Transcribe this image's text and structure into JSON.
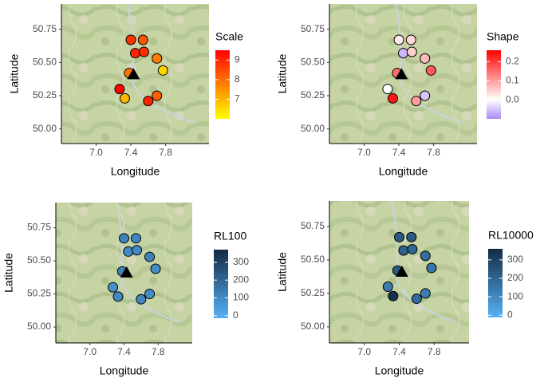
{
  "chart_data": [
    {
      "type": "scatter",
      "x_label": "Longitude",
      "y_label": "Latitude",
      "legend_title": "Scale",
      "xlim": [
        6.6,
        8.3
      ],
      "ylim": [
        49.89,
        50.94
      ],
      "xticks": [
        {
          "value": 7,
          "label": "7.0"
        },
        {
          "value": 7.4,
          "label": "7.4"
        },
        {
          "value": 7.8,
          "label": "7.8"
        }
      ],
      "yticks": [
        {
          "value": 50,
          "label": "50.00"
        },
        {
          "value": 50.25,
          "label": "50.25"
        },
        {
          "value": 50.5,
          "label": "50.50"
        },
        {
          "value": 50.75,
          "label": "50.75"
        }
      ],
      "x": [
        7.4,
        7.54,
        7.45,
        7.55,
        7.7,
        7.77,
        7.38,
        7.27,
        7.33,
        7.6,
        7.7
      ],
      "y": [
        50.67,
        50.67,
        50.57,
        50.58,
        50.53,
        50.44,
        50.42,
        50.3,
        50.23,
        50.21,
        50.25
      ],
      "values": [
        8.8,
        8.3,
        9.0,
        8.9,
        7.8,
        6.6,
        7.9,
        9.5,
        7.0,
        9.0,
        8.2
      ],
      "color_scale": {
        "low": "#ffff00",
        "high": "#ff0000",
        "lim": [
          6.0,
          9.5
        ],
        "ticks": [
          7,
          8,
          9
        ]
      },
      "marker": {
        "x": 7.43,
        "y": 50.41
      }
    },
    {
      "type": "scatter",
      "x_label": "Longitude",
      "y_label": "Latitude",
      "legend_title": "Shape",
      "xlim": [
        6.6,
        8.3
      ],
      "ylim": [
        49.89,
        50.94
      ],
      "xticks": [
        {
          "value": 7,
          "label": "7.0"
        },
        {
          "value": 7.4,
          "label": "7.4"
        },
        {
          "value": 7.8,
          "label": "7.8"
        }
      ],
      "yticks": [
        {
          "value": 50,
          "label": "50.00"
        },
        {
          "value": 50.25,
          "label": "50.25"
        },
        {
          "value": 50.5,
          "label": "50.50"
        },
        {
          "value": 50.75,
          "label": "50.75"
        }
      ],
      "x": [
        7.4,
        7.54,
        7.45,
        7.55,
        7.7,
        7.77,
        7.38,
        7.27,
        7.33,
        7.6,
        7.7
      ],
      "y": [
        50.67,
        50.67,
        50.57,
        50.58,
        50.53,
        50.44,
        50.42,
        50.3,
        50.23,
        50.21,
        50.25
      ],
      "values": [
        0.02,
        0.04,
        -0.06,
        0.05,
        0.07,
        0.17,
        0.15,
        0.0,
        0.24,
        0.1,
        -0.05
      ],
      "color_scale": {
        "low": "#a98bf5",
        "mid": "#ffffff",
        "high": "#ff0000",
        "midpoint": 0,
        "lim": [
          -0.1,
          0.26
        ],
        "ticks": [
          {
            "value": 0,
            "label": "0.0"
          },
          0.1,
          0.2
        ]
      },
      "marker": {
        "x": 7.43,
        "y": 50.41
      }
    },
    {
      "type": "scatter",
      "x_label": "Longitude",
      "y_label": "Latitude",
      "legend_title": "RL100",
      "xlim": [
        6.6,
        8.2
      ],
      "ylim": [
        49.88,
        50.94
      ],
      "xticks": [
        {
          "value": 7,
          "label": "7.0"
        },
        {
          "value": 7.4,
          "label": "7.4"
        },
        {
          "value": 7.8,
          "label": "7.8"
        }
      ],
      "yticks": [
        {
          "value": 50,
          "label": "50.00"
        },
        {
          "value": 50.25,
          "label": "50.25"
        },
        {
          "value": 50.5,
          "label": "50.50"
        },
        {
          "value": 50.75,
          "label": "50.75"
        }
      ],
      "x": [
        7.4,
        7.54,
        7.45,
        7.55,
        7.7,
        7.77,
        7.38,
        7.27,
        7.33,
        7.6,
        7.7
      ],
      "y": [
        50.67,
        50.67,
        50.57,
        50.58,
        50.53,
        50.44,
        50.42,
        50.3,
        50.23,
        50.21,
        50.25
      ],
      "values": [
        120,
        110,
        100,
        100,
        120,
        90,
        120,
        80,
        100,
        110,
        90
      ],
      "color_scale": {
        "low": "#56b1f7",
        "high": "#132b43",
        "lim": [
          -15,
          372
        ],
        "ticks": [
          0,
          100,
          200,
          300
        ]
      },
      "marker": {
        "x": 7.43,
        "y": 50.41
      }
    },
    {
      "type": "scatter",
      "x_label": "Longitude",
      "y_label": "Latitude",
      "legend_title": "RL10000",
      "xlim": [
        6.6,
        8.2
      ],
      "ylim": [
        49.88,
        50.94
      ],
      "xticks": [
        {
          "value": 7,
          "label": "7.0"
        },
        {
          "value": 7.4,
          "label": "7.4"
        },
        {
          "value": 7.8,
          "label": "7.8"
        }
      ],
      "yticks": [
        {
          "value": 50,
          "label": "50.00"
        },
        {
          "value": 50.25,
          "label": "50.25"
        },
        {
          "value": 50.5,
          "label": "50.50"
        },
        {
          "value": 50.75,
          "label": "50.75"
        }
      ],
      "x": [
        7.4,
        7.54,
        7.45,
        7.55,
        7.7,
        7.77,
        7.38,
        7.27,
        7.33,
        7.6,
        7.7
      ],
      "y": [
        50.67,
        50.67,
        50.57,
        50.58,
        50.53,
        50.44,
        50.42,
        50.3,
        50.23,
        50.21,
        50.25
      ],
      "values": [
        230,
        230,
        210,
        200,
        170,
        150,
        230,
        140,
        340,
        180,
        130
      ],
      "color_scale": {
        "low": "#56b1f7",
        "high": "#132b43",
        "lim": [
          -12,
          360
        ],
        "ticks": [
          0,
          100,
          200,
          300
        ]
      },
      "marker": {
        "x": 7.43,
        "y": 50.41
      }
    }
  ]
}
